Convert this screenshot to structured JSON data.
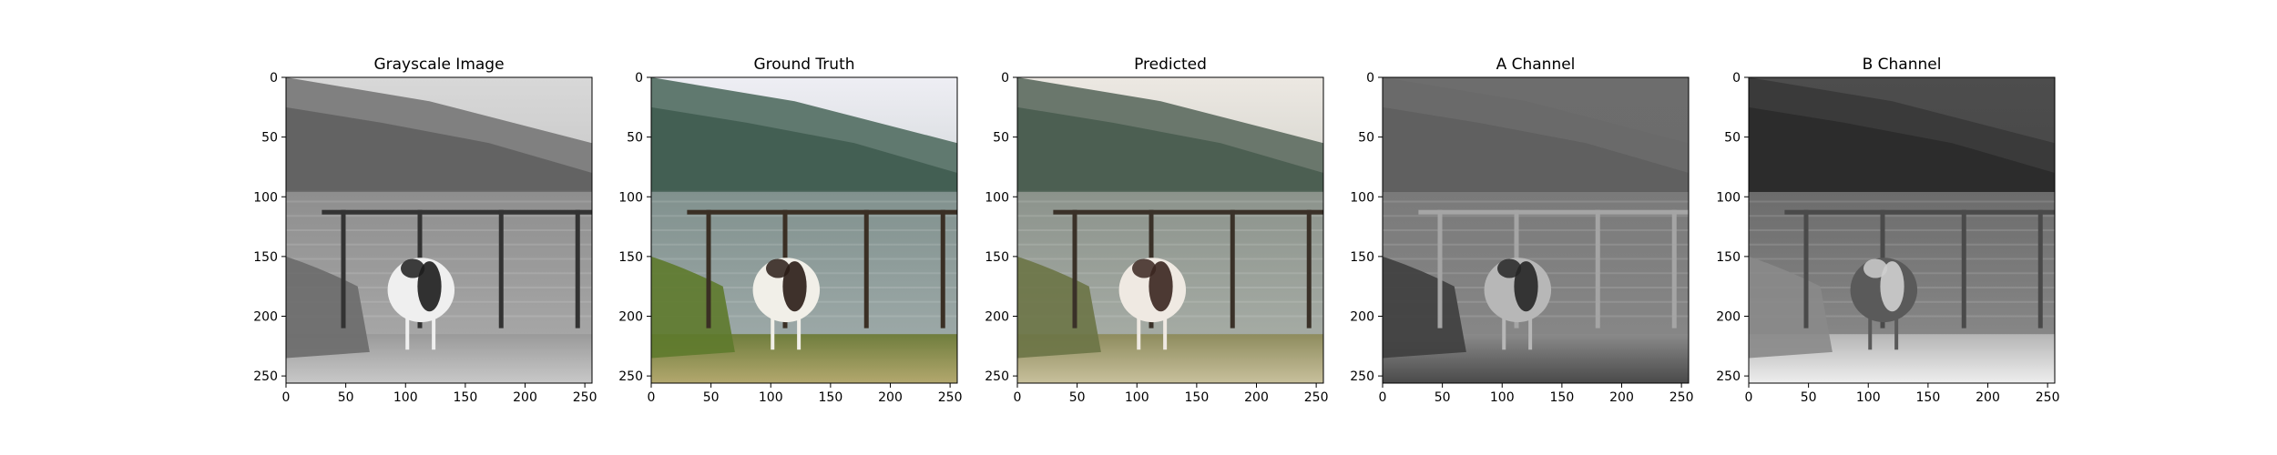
{
  "panels": [
    {
      "title": "Grayscale Image",
      "kind": "gray",
      "xlim": [
        0,
        256
      ],
      "ylim": [
        256,
        0
      ],
      "xticks": [
        0,
        50,
        100,
        150,
        200,
        250
      ],
      "yticks": [
        0,
        50,
        100,
        150,
        200,
        250
      ]
    },
    {
      "title": "Ground Truth",
      "kind": "color",
      "xlim": [
        0,
        256
      ],
      "ylim": [
        256,
        0
      ],
      "xticks": [
        0,
        50,
        100,
        150,
        200,
        250
      ],
      "yticks": [
        0,
        50,
        100,
        150,
        200,
        250
      ]
    },
    {
      "title": "Predicted",
      "kind": "pred",
      "xlim": [
        0,
        256
      ],
      "ylim": [
        256,
        0
      ],
      "xticks": [
        0,
        50,
        100,
        150,
        200,
        250
      ],
      "yticks": [
        0,
        50,
        100,
        150,
        200,
        250
      ]
    },
    {
      "title": "A Channel",
      "kind": "achan",
      "xlim": [
        0,
        256
      ],
      "ylim": [
        256,
        0
      ],
      "xticks": [
        0,
        50,
        100,
        150,
        200,
        250
      ],
      "yticks": [
        0,
        50,
        100,
        150,
        200,
        250
      ]
    },
    {
      "title": "B Channel",
      "kind": "bchan",
      "xlim": [
        0,
        256
      ],
      "ylim": [
        256,
        0
      ],
      "xticks": [
        0,
        50,
        100,
        150,
        200,
        250
      ],
      "yticks": [
        0,
        50,
        100,
        150,
        200,
        250
      ]
    }
  ],
  "chart_data": [
    {
      "type": "heatmap",
      "title": "Grayscale Image",
      "xlim": [
        0,
        256
      ],
      "ylim": [
        256,
        0
      ],
      "xticks": [
        0,
        50,
        100,
        150,
        200,
        250
      ],
      "yticks": [
        0,
        50,
        100,
        150,
        200,
        250
      ],
      "grid": false
    },
    {
      "type": "heatmap",
      "title": "Ground Truth",
      "xlim": [
        0,
        256
      ],
      "ylim": [
        256,
        0
      ],
      "xticks": [
        0,
        50,
        100,
        150,
        200,
        250
      ],
      "yticks": [
        0,
        50,
        100,
        150,
        200,
        250
      ],
      "grid": false
    },
    {
      "type": "heatmap",
      "title": "Predicted",
      "xlim": [
        0,
        256
      ],
      "ylim": [
        256,
        0
      ],
      "xticks": [
        0,
        50,
        100,
        150,
        200,
        250
      ],
      "yticks": [
        0,
        50,
        100,
        150,
        200,
        250
      ],
      "grid": false
    },
    {
      "type": "heatmap",
      "title": "A Channel",
      "xlim": [
        0,
        256
      ],
      "ylim": [
        256,
        0
      ],
      "xticks": [
        0,
        50,
        100,
        150,
        200,
        250
      ],
      "yticks": [
        0,
        50,
        100,
        150,
        200,
        250
      ],
      "grid": false
    },
    {
      "type": "heatmap",
      "title": "B Channel",
      "xlim": [
        0,
        256
      ],
      "ylim": [
        256,
        0
      ],
      "xticks": [
        0,
        50,
        100,
        150,
        200,
        250
      ],
      "yticks": [
        0,
        50,
        100,
        150,
        200,
        250
      ],
      "grid": false
    }
  ]
}
